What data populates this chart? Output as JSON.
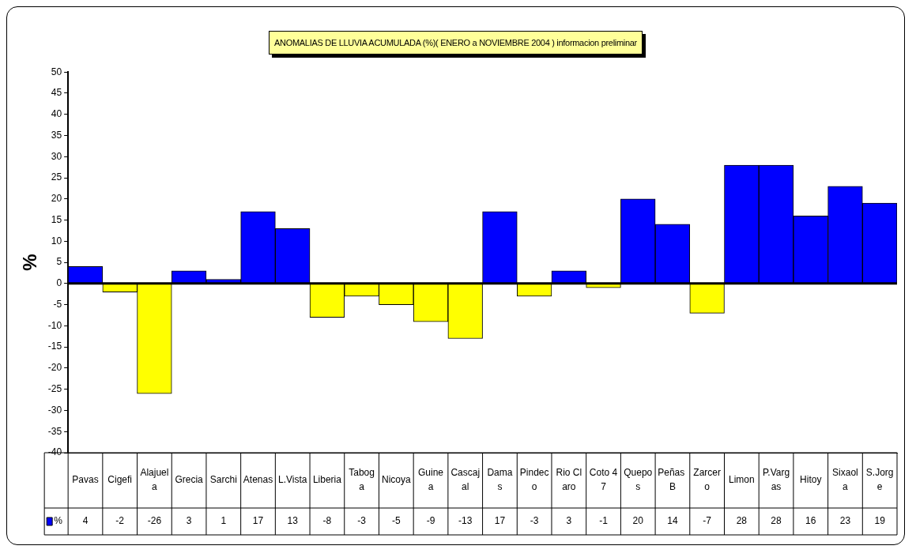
{
  "chart_data": {
    "type": "bar",
    "title": "ANOMALIAS DE LLUVIA ACUMULADA (%)( ENERO a NOVIEMBRE 2004 ) informacion preliminar",
    "ylabel": "%",
    "categories": [
      "Pavas",
      "Cigefi",
      "Alajuela",
      "Grecia",
      "Sarchi",
      "Atenas",
      "L.Vista",
      "Liberia",
      "Taboga",
      "Nicoya",
      "Guinea",
      "Cascajal",
      "Damas",
      "Pindeco",
      "Rio Claro",
      "Coto 47",
      "Quepos",
      "Peñas B",
      "Zarcero",
      "Limon",
      "P.Vargas",
      "Hitoy",
      "Sixaola",
      "S.Jorge"
    ],
    "series": [
      {
        "name": "%",
        "color": "#0000ff",
        "colors": [
          "#0000ff",
          "#ffff00",
          "#ffff00",
          "#0000ff",
          "#0000ff",
          "#0000ff",
          "#0000ff",
          "#ffff00",
          "#ffff00",
          "#ffff00",
          "#ffff00",
          "#ffff00",
          "#0000ff",
          "#ffff00",
          "#0000ff",
          "#ffff00",
          "#0000ff",
          "#0000ff",
          "#ffff00",
          "#0000ff",
          "#0000ff",
          "#0000ff",
          "#0000ff",
          "#0000ff"
        ],
        "values": [
          4,
          -2,
          -26,
          3,
          1,
          17,
          13,
          -8,
          -3,
          -5,
          -9,
          -13,
          17,
          -3,
          3,
          -1,
          20,
          14,
          -7,
          28,
          28,
          16,
          23,
          19
        ]
      }
    ],
    "ylim": [
      -40,
      50
    ],
    "yticks": [
      -40,
      -35,
      -30,
      -25,
      -20,
      -15,
      -10,
      -5,
      0,
      5,
      10,
      15,
      20,
      25,
      30,
      35,
      40,
      45,
      50
    ],
    "data_labels": true
  }
}
